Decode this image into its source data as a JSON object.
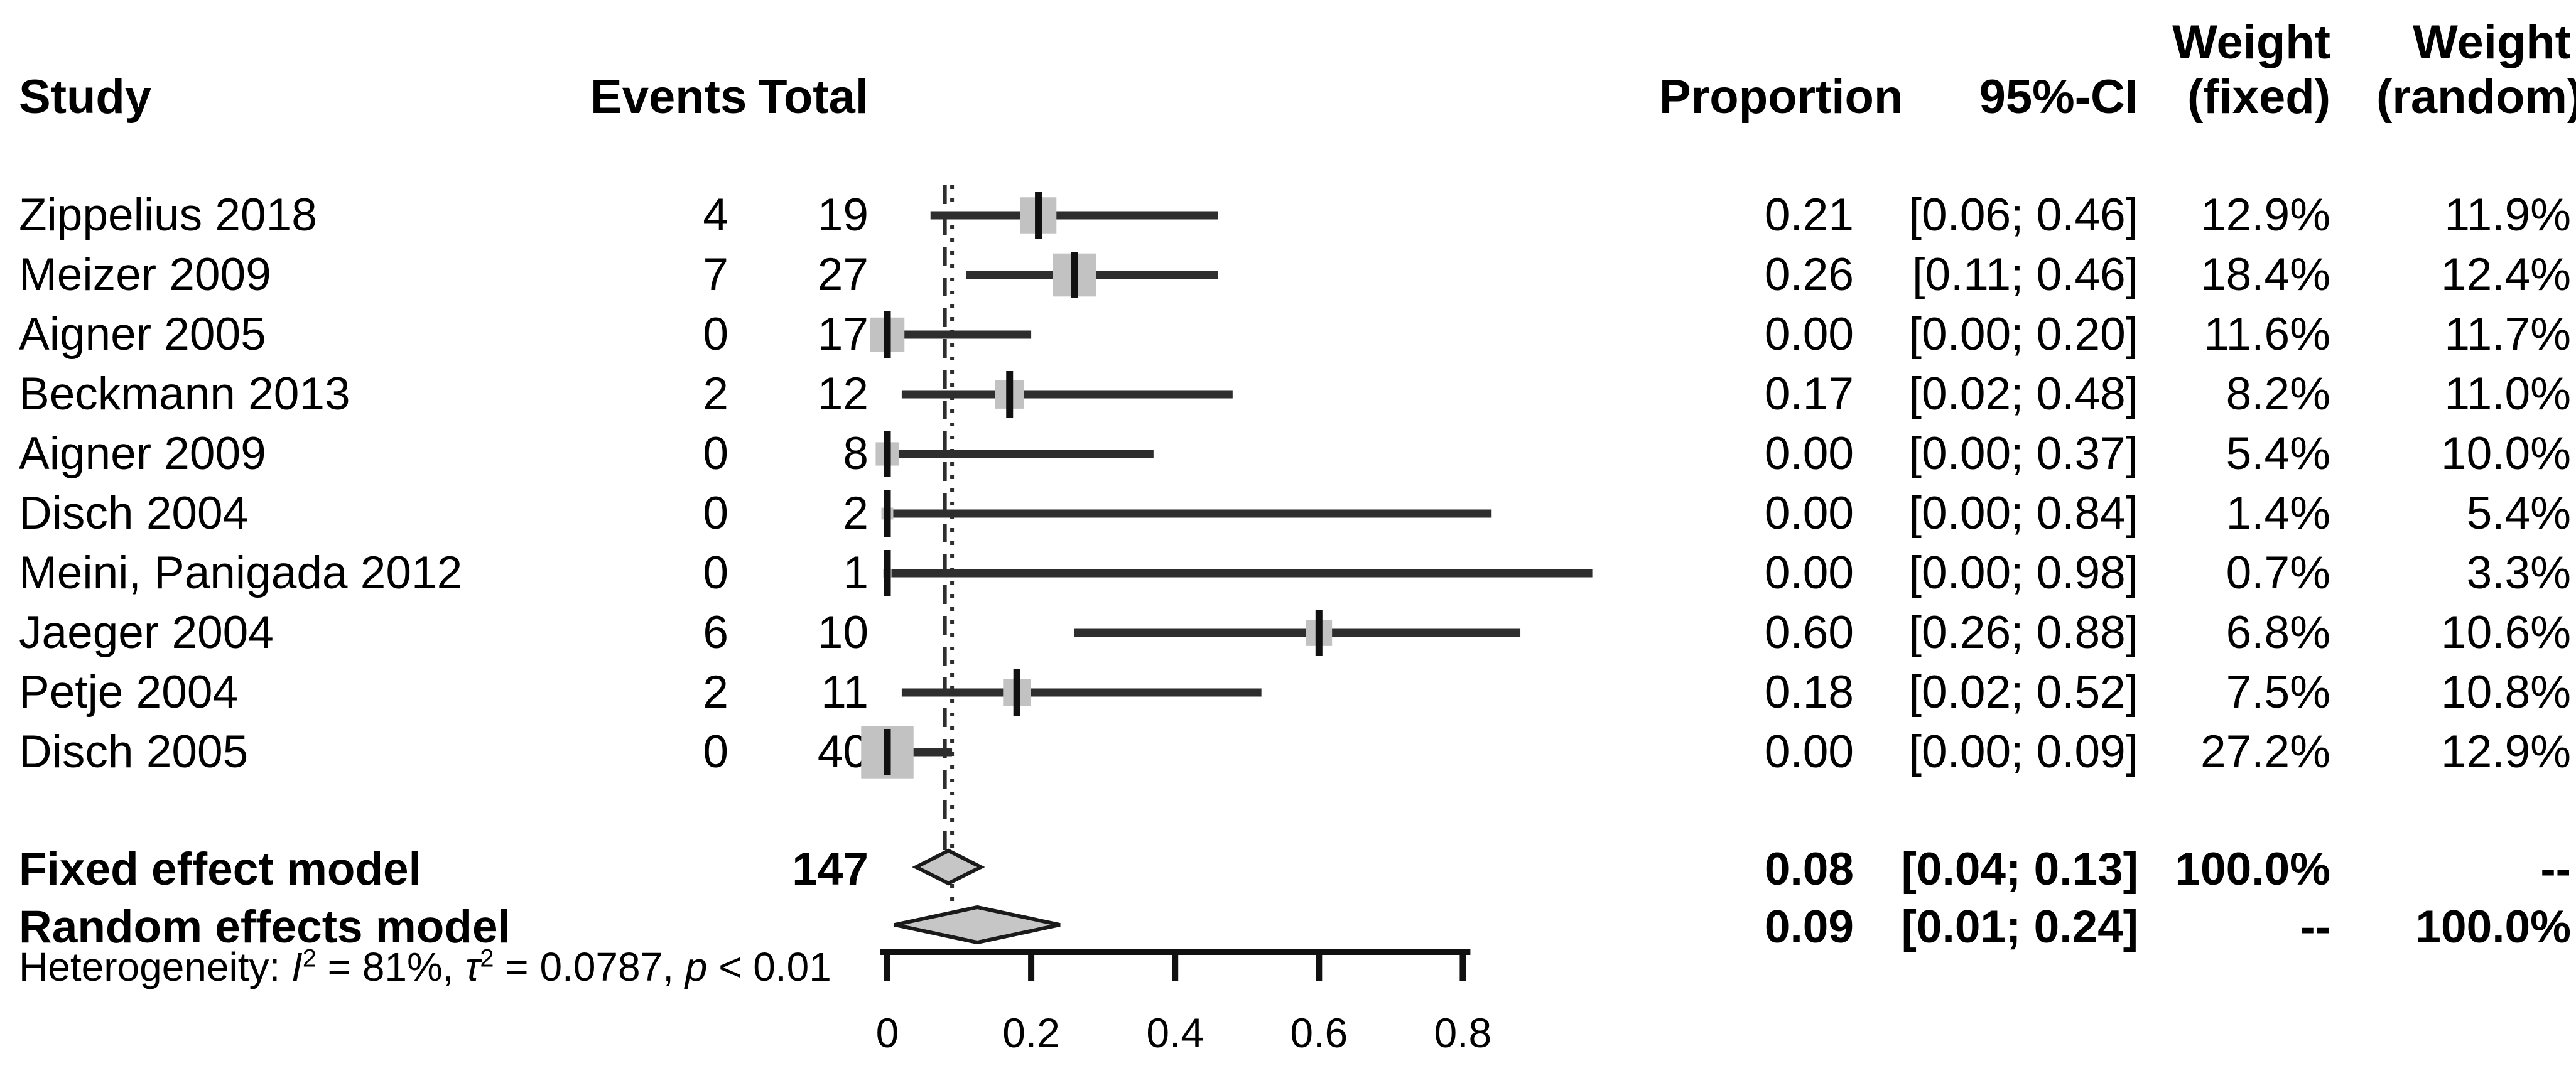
{
  "header": {
    "col_study": "Study",
    "col_events": "Events",
    "col_total": "Total",
    "col_proportion": "Proportion",
    "col_ci": "95%-CI",
    "col_weight_word_fixed": "Weight",
    "col_weight_word_random": "Weight",
    "col_weight_fixed": "(fixed)",
    "col_weight_random": "(random)"
  },
  "chart_data": {
    "type": "forest",
    "title": "",
    "xlabel": "",
    "xlim": [
      0,
      1.0
    ],
    "axis": {
      "ticks": [
        0,
        0.2,
        0.4,
        0.6,
        0.8
      ],
      "labels": [
        "0",
        "0.2",
        "0.4",
        "0.6",
        "0.8"
      ]
    },
    "studies": [
      {
        "name": "Zippelius 2018",
        "events": "4",
        "total": "19",
        "proportion": "0.21",
        "ci": "[0.06; 0.46]",
        "weight_fixed": "12.9%",
        "weight_random": "11.9%",
        "estimate": 0.21,
        "lower": 0.06,
        "upper": 0.46,
        "wf": 12.9
      },
      {
        "name": "Meizer 2009",
        "events": "7",
        "total": "27",
        "proportion": "0.26",
        "ci": "[0.11; 0.46]",
        "weight_fixed": "18.4%",
        "weight_random": "12.4%",
        "estimate": 0.26,
        "lower": 0.11,
        "upper": 0.46,
        "wf": 18.4
      },
      {
        "name": "Aigner 2005",
        "events": "0",
        "total": "17",
        "proportion": "0.00",
        "ci": "[0.00; 0.20]",
        "weight_fixed": "11.6%",
        "weight_random": "11.7%",
        "estimate": 0.0,
        "lower": 0.0,
        "upper": 0.2,
        "wf": 11.6
      },
      {
        "name": "Beckmann 2013",
        "events": "2",
        "total": "12",
        "proportion": "0.17",
        "ci": "[0.02; 0.48]",
        "weight_fixed": "8.2%",
        "weight_random": "11.0%",
        "estimate": 0.17,
        "lower": 0.02,
        "upper": 0.48,
        "wf": 8.2
      },
      {
        "name": "Aigner 2009",
        "events": "0",
        "total": "8",
        "proportion": "0.00",
        "ci": "[0.00; 0.37]",
        "weight_fixed": "5.4%",
        "weight_random": "10.0%",
        "estimate": 0.0,
        "lower": 0.0,
        "upper": 0.37,
        "wf": 5.4
      },
      {
        "name": "Disch 2004",
        "events": "0",
        "total": "2",
        "proportion": "0.00",
        "ci": "[0.00; 0.84]",
        "weight_fixed": "1.4%",
        "weight_random": "5.4%",
        "estimate": 0.0,
        "lower": 0.0,
        "upper": 0.84,
        "wf": 1.4
      },
      {
        "name": "Meini, Panigada 2012",
        "events": "0",
        "total": "1",
        "proportion": "0.00",
        "ci": "[0.00; 0.98]",
        "weight_fixed": "0.7%",
        "weight_random": "3.3%",
        "estimate": 0.0,
        "lower": 0.0,
        "upper": 0.98,
        "wf": 0.7
      },
      {
        "name": "Jaeger 2004",
        "events": "6",
        "total": "10",
        "proportion": "0.60",
        "ci": "[0.26; 0.88]",
        "weight_fixed": "6.8%",
        "weight_random": "10.6%",
        "estimate": 0.6,
        "lower": 0.26,
        "upper": 0.88,
        "wf": 6.8
      },
      {
        "name": "Petje 2004",
        "events": "2",
        "total": "11",
        "proportion": "0.18",
        "ci": "[0.02; 0.52]",
        "weight_fixed": "7.5%",
        "weight_random": "10.8%",
        "estimate": 0.18,
        "lower": 0.02,
        "upper": 0.52,
        "wf": 7.5
      },
      {
        "name": "Disch 2005",
        "events": "0",
        "total": "40",
        "proportion": "0.00",
        "ci": "[0.00; 0.09]",
        "weight_fixed": "27.2%",
        "weight_random": "12.9%",
        "estimate": 0.0,
        "lower": 0.0,
        "upper": 0.09,
        "wf": 27.2
      }
    ],
    "reference_lines": {
      "fixed": 0.08,
      "random": 0.09
    }
  },
  "summary": {
    "fixed": {
      "label": "Fixed effect model",
      "total": "147",
      "proportion": "0.08",
      "ci": "[0.04; 0.13]",
      "weight_fixed": "100.0%",
      "weight_random": "--",
      "estimate": 0.08,
      "lower": 0.04,
      "upper": 0.13
    },
    "random": {
      "label": "Random effects model",
      "proportion": "0.09",
      "ci": "[0.01; 0.24]",
      "weight_fixed": "--",
      "weight_random": "100.0%",
      "estimate": 0.09,
      "lower": 0.01,
      "upper": 0.24
    }
  },
  "heterogeneity": {
    "prefix": "Heterogeneity: ",
    "i_symbol": "I",
    "i_sup": "2",
    "i_rest": " = 81%, ",
    "tau_symbol": "τ",
    "tau_sup": "2",
    "tau_rest": " = 0.0787, ",
    "p_symbol": "p",
    "p_rest": " < 0.01"
  },
  "colors": {
    "text": "#000000",
    "line": "#2e2e2e",
    "square": "#c2c2c2",
    "diamond_fill": "#c6c6c6",
    "diamond_stroke": "#1a1a1a"
  }
}
